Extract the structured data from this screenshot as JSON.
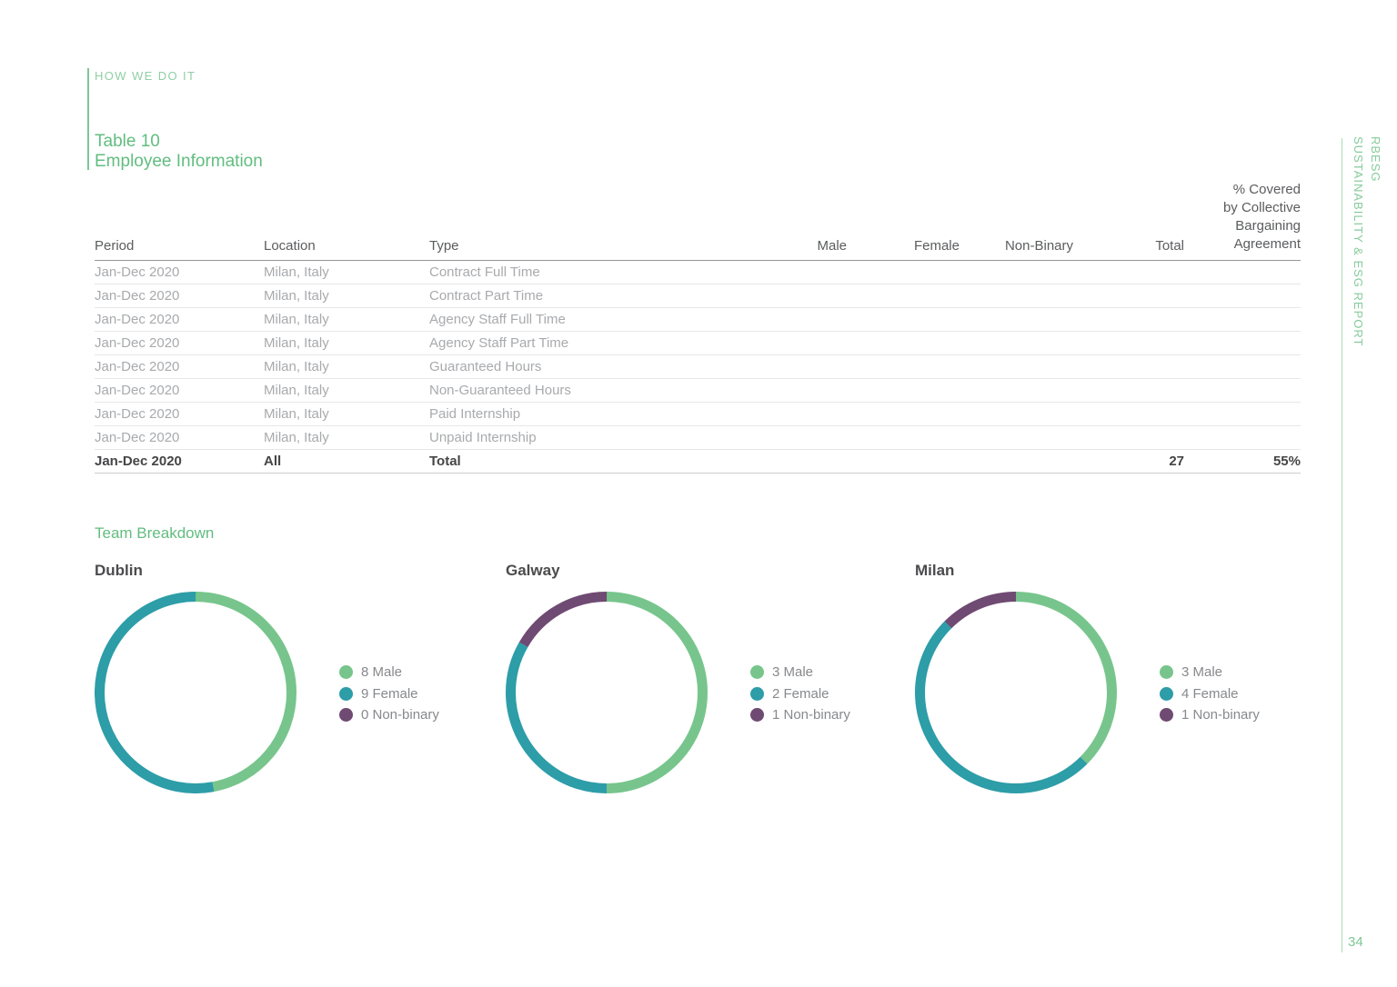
{
  "meta": {
    "eyebrow": "HOW WE DO IT",
    "sidebar_line1": "RBESG",
    "sidebar_line2": "SUSTAINABILITY & ESG REPORT",
    "page_number": "34"
  },
  "heading": {
    "table_label": "Table 10",
    "table_title": "Employee Information"
  },
  "table": {
    "headers": {
      "period": "Period",
      "location": "Location",
      "type": "Type",
      "male": "Male",
      "female": "Female",
      "nonbinary": "Non-Binary",
      "total": "Total",
      "covered": "% Covered\nby Collective\nBargaining\nAgreement"
    },
    "rows": [
      {
        "period": "Jan-Dec 2020",
        "location": "Milan, Italy",
        "type": "Contract Full Time",
        "male": "",
        "female": "",
        "nonbinary": "",
        "total": "",
        "covered": ""
      },
      {
        "period": "Jan-Dec 2020",
        "location": "Milan, Italy",
        "type": "Contract Part Time",
        "male": "",
        "female": "",
        "nonbinary": "",
        "total": "",
        "covered": ""
      },
      {
        "period": "Jan-Dec 2020",
        "location": "Milan, Italy",
        "type": "Agency Staff Full Time",
        "male": "",
        "female": "",
        "nonbinary": "",
        "total": "",
        "covered": ""
      },
      {
        "period": "Jan-Dec 2020",
        "location": "Milan, Italy",
        "type": "Agency Staff Part Time",
        "male": "",
        "female": "",
        "nonbinary": "",
        "total": "",
        "covered": ""
      },
      {
        "period": "Jan-Dec 2020",
        "location": "Milan, Italy",
        "type": "Guaranteed Hours",
        "male": "",
        "female": "",
        "nonbinary": "",
        "total": "",
        "covered": ""
      },
      {
        "period": "Jan-Dec 2020",
        "location": "Milan, Italy",
        "type": "Non-Guaranteed Hours",
        "male": "",
        "female": "",
        "nonbinary": "",
        "total": "",
        "covered": ""
      },
      {
        "period": "Jan-Dec 2020",
        "location": "Milan, Italy",
        "type": "Paid Internship",
        "male": "",
        "female": "",
        "nonbinary": "",
        "total": "",
        "covered": ""
      },
      {
        "period": "Jan-Dec 2020",
        "location": "Milan, Italy",
        "type": "Unpaid Internship",
        "male": "",
        "female": "",
        "nonbinary": "",
        "total": "",
        "covered": ""
      }
    ],
    "total_row": {
      "period": "Jan-Dec 2020",
      "location": "All",
      "type": "Total",
      "male": "",
      "female": "",
      "nonbinary": "",
      "total": "27",
      "covered": "55%"
    }
  },
  "team_breakdown": {
    "title": "Team Breakdown"
  },
  "chart_data": [
    {
      "type": "pie",
      "title": "Dublin",
      "labels": [
        "Male",
        "Female",
        "Non-binary"
      ],
      "values": [
        8,
        9,
        0
      ],
      "legend_labels": [
        "8 Male",
        "9 Female",
        "0 Non-binary"
      ],
      "legend_position": "right"
    },
    {
      "type": "pie",
      "title": "Galway",
      "labels": [
        "Male",
        "Female",
        "Non-binary"
      ],
      "values": [
        3,
        2,
        1
      ],
      "legend_labels": [
        "3 Male",
        "2 Female",
        "1 Non-binary"
      ],
      "legend_position": "right"
    },
    {
      "type": "pie",
      "title": "Milan",
      "labels": [
        "Male",
        "Female",
        "Non-binary"
      ],
      "values": [
        3,
        4,
        1
      ],
      "legend_labels": [
        "3 Male",
        "4 Female",
        "1 Non-binary"
      ],
      "legend_position": "right"
    }
  ],
  "colors": {
    "accent_green": "#62bd80",
    "chart_series": [
      "#77c58c",
      "#2d9da8",
      "#6f4a72"
    ]
  }
}
